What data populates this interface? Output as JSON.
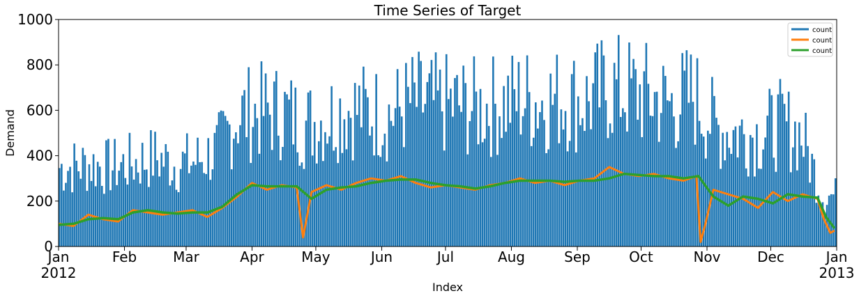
{
  "chart_data": {
    "type": "line",
    "title": "Time Series of Target",
    "xlabel": "Index",
    "ylabel": "Demand",
    "ylim": [
      0,
      1000
    ],
    "xlim": [
      "2012-01-01",
      "2013-01-01"
    ],
    "y_ticks": [
      "0",
      "200",
      "400",
      "600",
      "800",
      "1000"
    ],
    "x_ticks": [
      {
        "label": "Jan",
        "sublabel": "2012",
        "date": "2012-01-01"
      },
      {
        "label": "Feb",
        "sublabel": "",
        "date": "2012-02-01"
      },
      {
        "label": "Mar",
        "sublabel": "",
        "date": "2012-03-01"
      },
      {
        "label": "Apr",
        "sublabel": "",
        "date": "2012-04-01"
      },
      {
        "label": "May",
        "sublabel": "",
        "date": "2012-05-01"
      },
      {
        "label": "Jun",
        "sublabel": "",
        "date": "2012-06-01"
      },
      {
        "label": "Jul",
        "sublabel": "",
        "date": "2012-07-01"
      },
      {
        "label": "Aug",
        "sublabel": "",
        "date": "2012-08-01"
      },
      {
        "label": "Sep",
        "sublabel": "",
        "date": "2012-09-01"
      },
      {
        "label": "Oct",
        "sublabel": "",
        "date": "2012-10-01"
      },
      {
        "label": "Nov",
        "sublabel": "",
        "date": "2012-11-01"
      },
      {
        "label": "Dec",
        "sublabel": "",
        "date": "2012-12-01"
      },
      {
        "label": "Jan",
        "sublabel": "2013",
        "date": "2013-01-01"
      }
    ],
    "legend_position": "top-right",
    "grid": false,
    "series": [
      {
        "name": "count",
        "color": "#1f77b4",
        "kind": "hourly-envelope",
        "description_values": "daily maximum of hourly demand (hourly minimum near 0)",
        "x": [
          "2012-01-05",
          "2012-01-15",
          "2012-01-25",
          "2012-02-05",
          "2012-02-15",
          "2012-02-25",
          "2012-03-05",
          "2012-03-15",
          "2012-03-25",
          "2012-04-05",
          "2012-04-15",
          "2012-04-25",
          "2012-05-05",
          "2012-05-15",
          "2012-05-25",
          "2012-06-05",
          "2012-06-15",
          "2012-06-25",
          "2012-07-05",
          "2012-07-15",
          "2012-07-25",
          "2012-08-05",
          "2012-08-15",
          "2012-08-25",
          "2012-09-05",
          "2012-09-15",
          "2012-09-25",
          "2012-10-05",
          "2012-10-15",
          "2012-10-25",
          "2012-11-05",
          "2012-11-15",
          "2012-11-25",
          "2012-12-05",
          "2012-12-15",
          "2012-12-25"
        ],
        "values": [
          480,
          500,
          480,
          510,
          540,
          500,
          520,
          580,
          800,
          820,
          820,
          740,
          780,
          840,
          820,
          800,
          880,
          860,
          860,
          840,
          860,
          900,
          880,
          900,
          880,
          960,
          940,
          910,
          860,
          920,
          720,
          690,
          680,
          740,
          680,
          310
        ]
      },
      {
        "name": "count",
        "color": "#ff7f0e",
        "kind": "daily-mean",
        "x": [
          "2012-01-01",
          "2012-01-08",
          "2012-01-15",
          "2012-01-22",
          "2012-01-29",
          "2012-02-05",
          "2012-02-12",
          "2012-02-19",
          "2012-02-26",
          "2012-03-04",
          "2012-03-11",
          "2012-03-18",
          "2012-03-25",
          "2012-04-01",
          "2012-04-08",
          "2012-04-15",
          "2012-04-22",
          "2012-04-25",
          "2012-04-29",
          "2012-05-06",
          "2012-05-13",
          "2012-05-20",
          "2012-05-27",
          "2012-06-03",
          "2012-06-10",
          "2012-06-17",
          "2012-06-24",
          "2012-07-01",
          "2012-07-08",
          "2012-07-15",
          "2012-07-22",
          "2012-07-29",
          "2012-08-05",
          "2012-08-12",
          "2012-08-19",
          "2012-08-26",
          "2012-09-02",
          "2012-09-09",
          "2012-09-16",
          "2012-09-23",
          "2012-09-30",
          "2012-10-07",
          "2012-10-14",
          "2012-10-21",
          "2012-10-27",
          "2012-10-29",
          "2012-10-31",
          "2012-11-04",
          "2012-11-11",
          "2012-11-18",
          "2012-11-25",
          "2012-12-02",
          "2012-12-09",
          "2012-12-16",
          "2012-12-23",
          "2012-12-26",
          "2012-12-29",
          "2012-12-31"
        ],
        "values": [
          100,
          90,
          140,
          120,
          110,
          160,
          150,
          140,
          150,
          160,
          130,
          170,
          220,
          280,
          250,
          270,
          260,
          40,
          240,
          270,
          250,
          280,
          300,
          290,
          310,
          280,
          260,
          270,
          260,
          250,
          270,
          280,
          300,
          280,
          290,
          270,
          290,
          300,
          350,
          320,
          310,
          320,
          300,
          290,
          310,
          20,
          90,
          250,
          230,
          210,
          170,
          240,
          200,
          230,
          210,
          120,
          60,
          70
        ]
      },
      {
        "name": "count",
        "color": "#2ca02c",
        "kind": "rolling-mean",
        "x": [
          "2012-01-01",
          "2012-01-08",
          "2012-01-15",
          "2012-01-22",
          "2012-01-29",
          "2012-02-05",
          "2012-02-12",
          "2012-02-19",
          "2012-02-26",
          "2012-03-04",
          "2012-03-11",
          "2012-03-18",
          "2012-03-25",
          "2012-04-01",
          "2012-04-08",
          "2012-04-15",
          "2012-04-22",
          "2012-04-29",
          "2012-05-06",
          "2012-05-13",
          "2012-05-20",
          "2012-05-27",
          "2012-06-03",
          "2012-06-10",
          "2012-06-17",
          "2012-06-24",
          "2012-07-01",
          "2012-07-08",
          "2012-07-15",
          "2012-07-22",
          "2012-07-29",
          "2012-08-05",
          "2012-08-12",
          "2012-08-19",
          "2012-08-26",
          "2012-09-02",
          "2012-09-09",
          "2012-09-16",
          "2012-09-23",
          "2012-09-30",
          "2012-10-07",
          "2012-10-14",
          "2012-10-21",
          "2012-10-28",
          "2012-11-04",
          "2012-11-11",
          "2012-11-18",
          "2012-11-25",
          "2012-12-02",
          "2012-12-09",
          "2012-12-16",
          "2012-12-23",
          "2012-12-27",
          "2012-12-31"
        ],
        "values": [
          95,
          100,
          120,
          125,
          120,
          150,
          160,
          150,
          145,
          150,
          150,
          175,
          230,
          270,
          265,
          265,
          265,
          210,
          250,
          260,
          265,
          280,
          290,
          295,
          295,
          280,
          270,
          265,
          255,
          265,
          280,
          290,
          290,
          290,
          285,
          290,
          290,
          300,
          320,
          315,
          310,
          310,
          300,
          310,
          220,
          180,
          220,
          210,
          190,
          230,
          220,
          215,
          130,
          80
        ]
      }
    ]
  }
}
